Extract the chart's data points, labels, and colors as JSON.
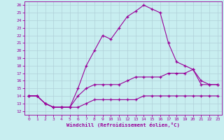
{
  "xlabel": "Windchill (Refroidissement éolien,°C)",
  "bg_color": "#c8eef0",
  "line_color": "#990099",
  "grid_color": "#b0d0d8",
  "xlim": [
    -0.5,
    23.5
  ],
  "ylim": [
    11.5,
    26.5
  ],
  "xticks": [
    0,
    1,
    2,
    3,
    4,
    5,
    6,
    7,
    8,
    9,
    10,
    11,
    12,
    13,
    14,
    15,
    16,
    17,
    18,
    19,
    20,
    21,
    22,
    23
  ],
  "yticks": [
    12,
    13,
    14,
    15,
    16,
    17,
    18,
    19,
    20,
    21,
    22,
    23,
    24,
    25,
    26
  ],
  "line1_x": [
    0,
    1,
    2,
    3,
    4,
    5,
    6,
    7,
    8,
    9,
    10,
    11,
    12,
    13,
    14,
    15,
    16,
    17,
    18,
    19,
    20,
    21,
    22,
    23
  ],
  "line1_y": [
    14,
    14,
    13,
    12.5,
    12.5,
    12.5,
    12.5,
    13,
    13.5,
    13.5,
    13.5,
    13.5,
    13.5,
    13.5,
    14,
    14,
    14,
    14,
    14,
    14,
    14,
    14,
    14,
    14
  ],
  "line2_x": [
    0,
    1,
    2,
    3,
    4,
    5,
    6,
    7,
    8,
    9,
    10,
    11,
    12,
    13,
    14,
    15,
    16,
    17,
    18,
    19,
    20,
    21,
    22,
    23
  ],
  "line2_y": [
    14,
    14,
    13,
    12.5,
    12.5,
    12.5,
    15,
    18,
    20,
    22,
    21.5,
    23,
    24.5,
    25.2,
    26,
    25.5,
    25,
    21,
    18.5,
    18,
    17.5,
    15.5,
    15.5,
    15.5
  ],
  "line3_x": [
    0,
    1,
    2,
    3,
    4,
    5,
    6,
    7,
    8,
    9,
    10,
    11,
    12,
    13,
    14,
    15,
    16,
    17,
    18,
    19,
    20,
    21,
    22,
    23
  ],
  "line3_y": [
    14,
    14,
    13,
    12.5,
    12.5,
    12.5,
    14,
    15,
    15.5,
    15.5,
    15.5,
    15.5,
    16,
    16.5,
    16.5,
    16.5,
    16.5,
    17,
    17,
    17,
    17.5,
    16,
    15.5,
    15.5
  ]
}
